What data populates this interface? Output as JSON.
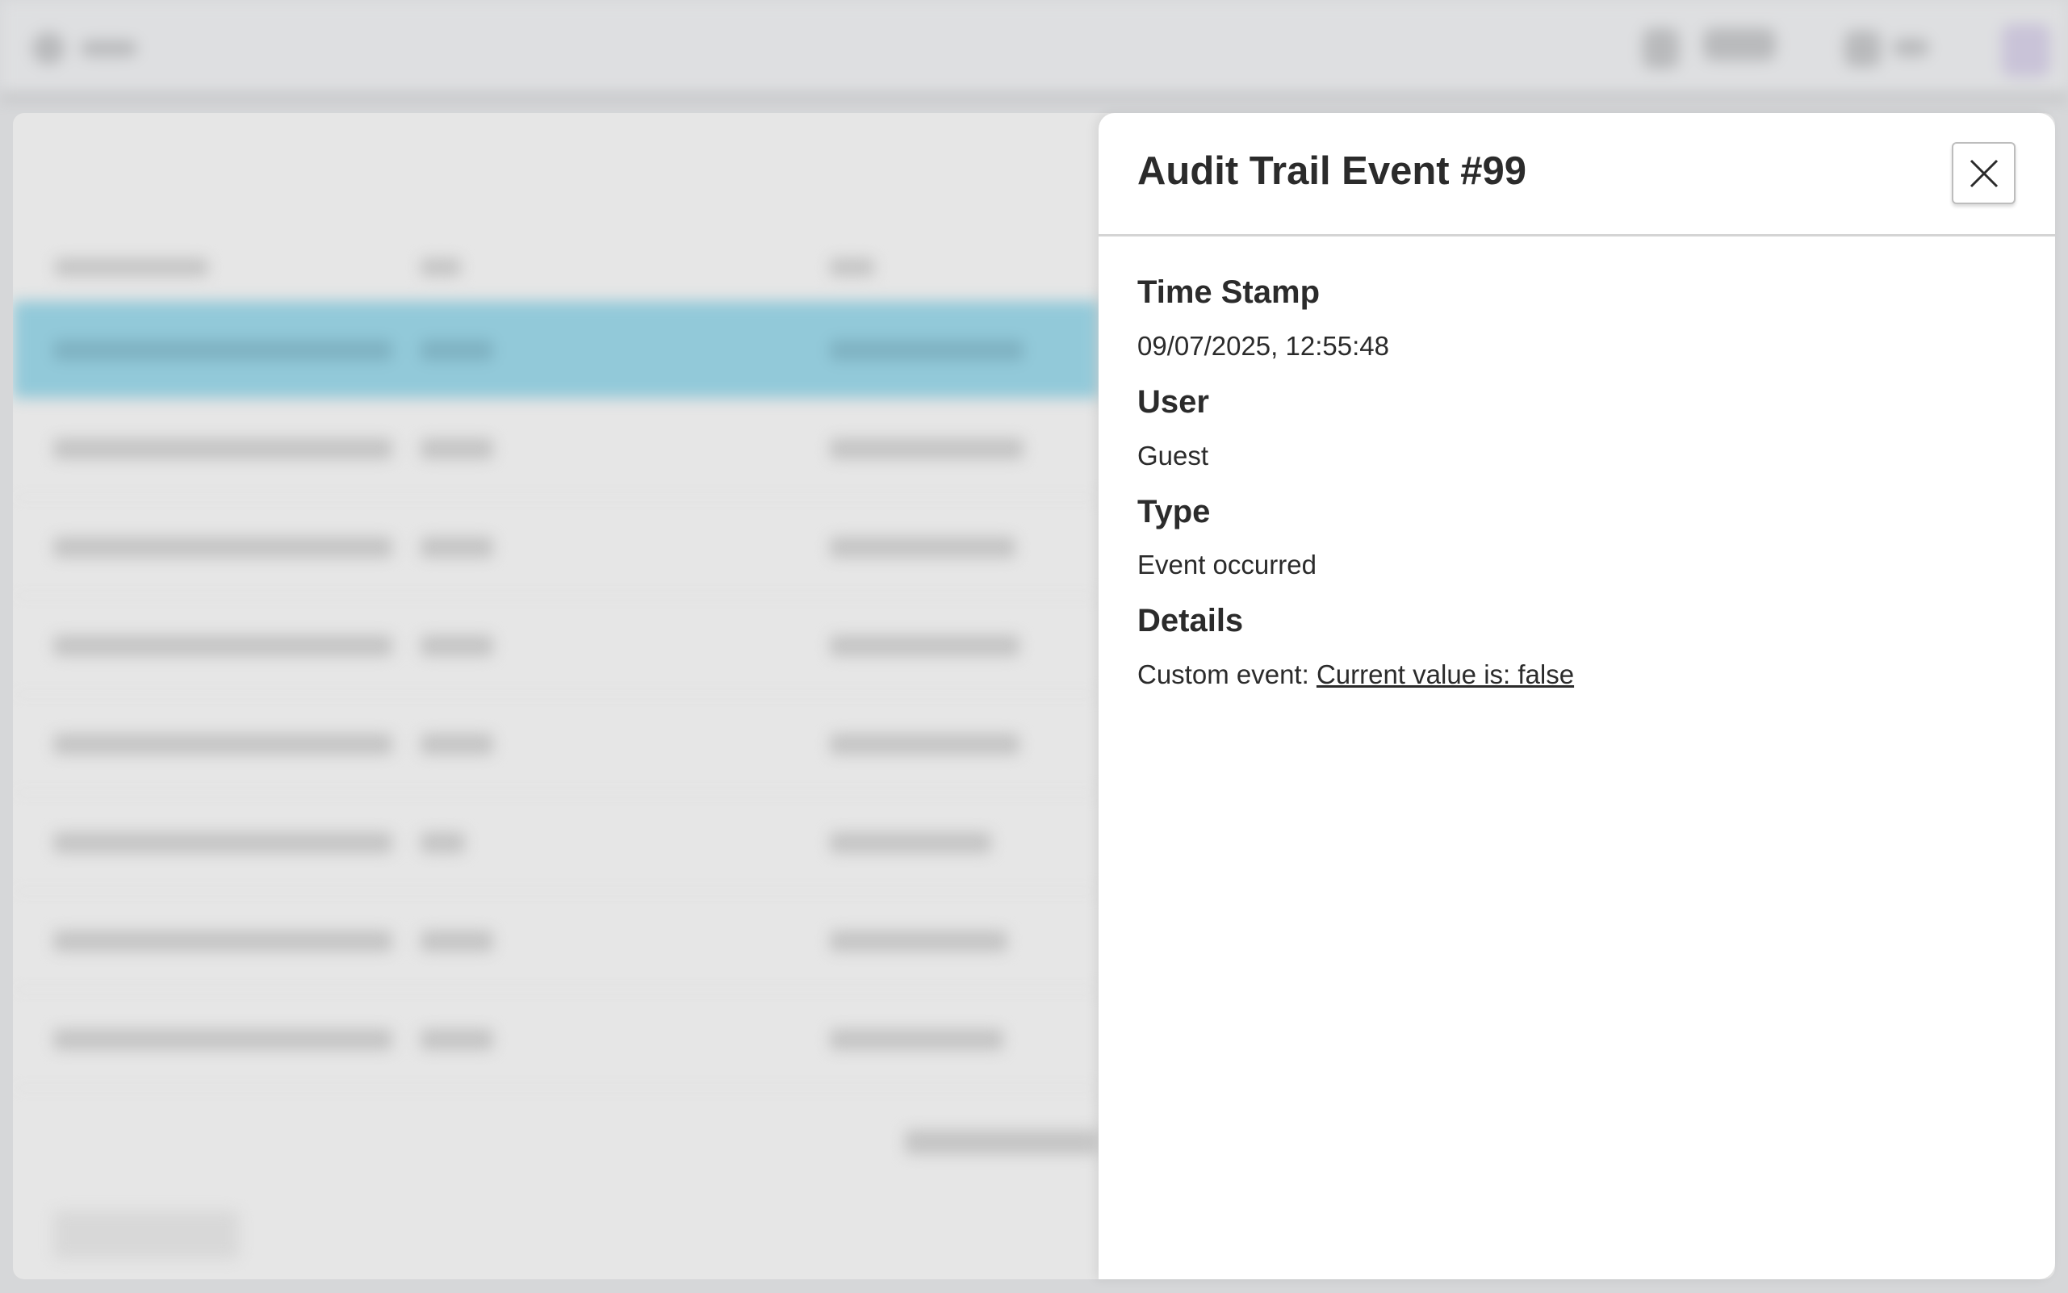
{
  "panel": {
    "title": "Audit Trail Event #99",
    "close_icon": "close-x-icon",
    "fields": [
      {
        "label": "Time Stamp",
        "value": "09/07/2025, 12:55:48"
      },
      {
        "label": "User",
        "value": "Guest"
      },
      {
        "label": "Type",
        "value": "Event occurred"
      },
      {
        "label": "Details",
        "prefix": "Custom event: ",
        "link": "Current value is: false"
      }
    ]
  },
  "colors": {
    "selected_row": "#92c9d9",
    "panel_bg": "#ffffff",
    "text": "#2b2b2b"
  }
}
